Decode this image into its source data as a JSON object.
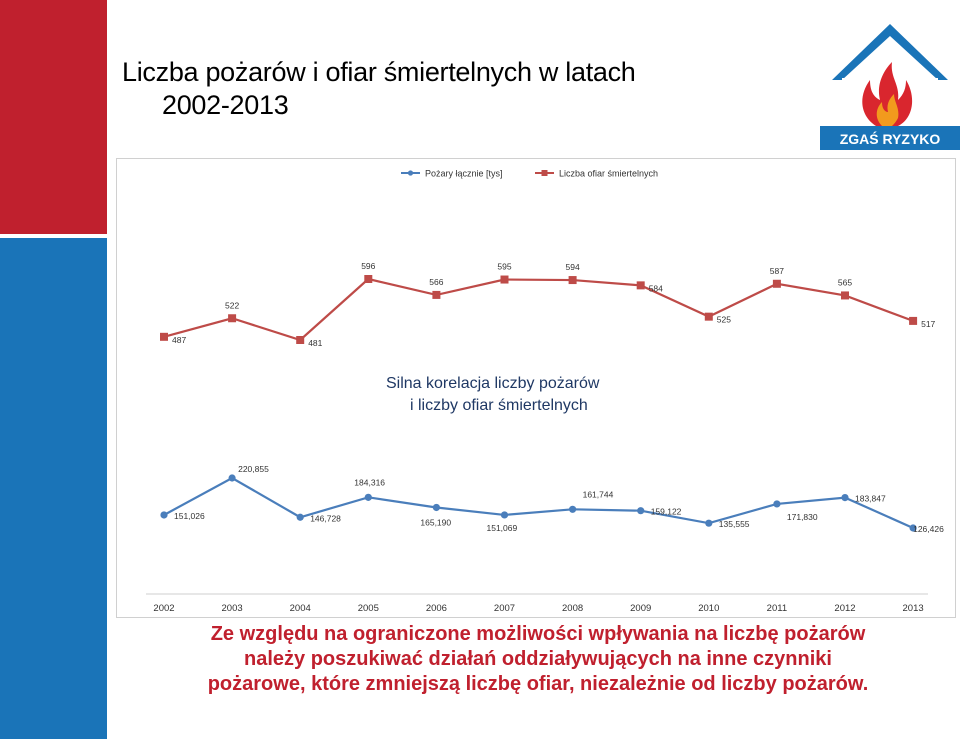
{
  "slide": {
    "title_line1": "Liczba pożarów i ofiar śmiertelnych w latach",
    "title_line2": "2002-2013",
    "logo_text": "ZGAŚ RYZYKO",
    "bottom_line1": "Ze względu na  ograniczone możliwości wpływania na liczbę pożarów",
    "bottom_line2": "należy poszukiwać działań oddziaływujących na  inne czynniki",
    "bottom_line3": "pożarowe, które zmniejszą liczbę ofiar, niezależnie od liczby pożarów."
  },
  "colors": {
    "accent_red": "#c0202e",
    "accent_blue": "#1a74b8",
    "series_fires": "#4a7ebb",
    "series_victims": "#be4b48"
  },
  "chart_data": {
    "type": "line",
    "categories": [
      "2002",
      "2003",
      "2004",
      "2005",
      "2006",
      "2007",
      "2008",
      "2009",
      "2010",
      "2011",
      "2012",
      "2013"
    ],
    "series": [
      {
        "name": "Pożary łącznie [tys]",
        "values": [
          151.026,
          220.855,
          146.728,
          184.316,
          165.19,
          151.069,
          161.744,
          159.122,
          135.555,
          171.83,
          183.847,
          126.426
        ],
        "labels": [
          "151,026",
          "220,855",
          "146,728",
          "184,316",
          "165,190",
          "151,069",
          "161,744",
          "159,122",
          "135,555",
          "171,830",
          "183,847",
          "126,426"
        ]
      },
      {
        "name": "Liczba ofiar śmiertelnych",
        "values": [
          487,
          522,
          481,
          596,
          566,
          595,
          594,
          584,
          525,
          587,
          565,
          517
        ],
        "labels": [
          "487",
          "522",
          "481",
          "596",
          "566",
          "595",
          "594",
          "584",
          "525",
          "587",
          "565",
          "517"
        ]
      }
    ],
    "annotation_line1": "Silna  korelacja  liczby  pożarów",
    "annotation_line2": "i liczby ofiar śmiertelnych",
    "legend_position": "top",
    "grid": false
  }
}
